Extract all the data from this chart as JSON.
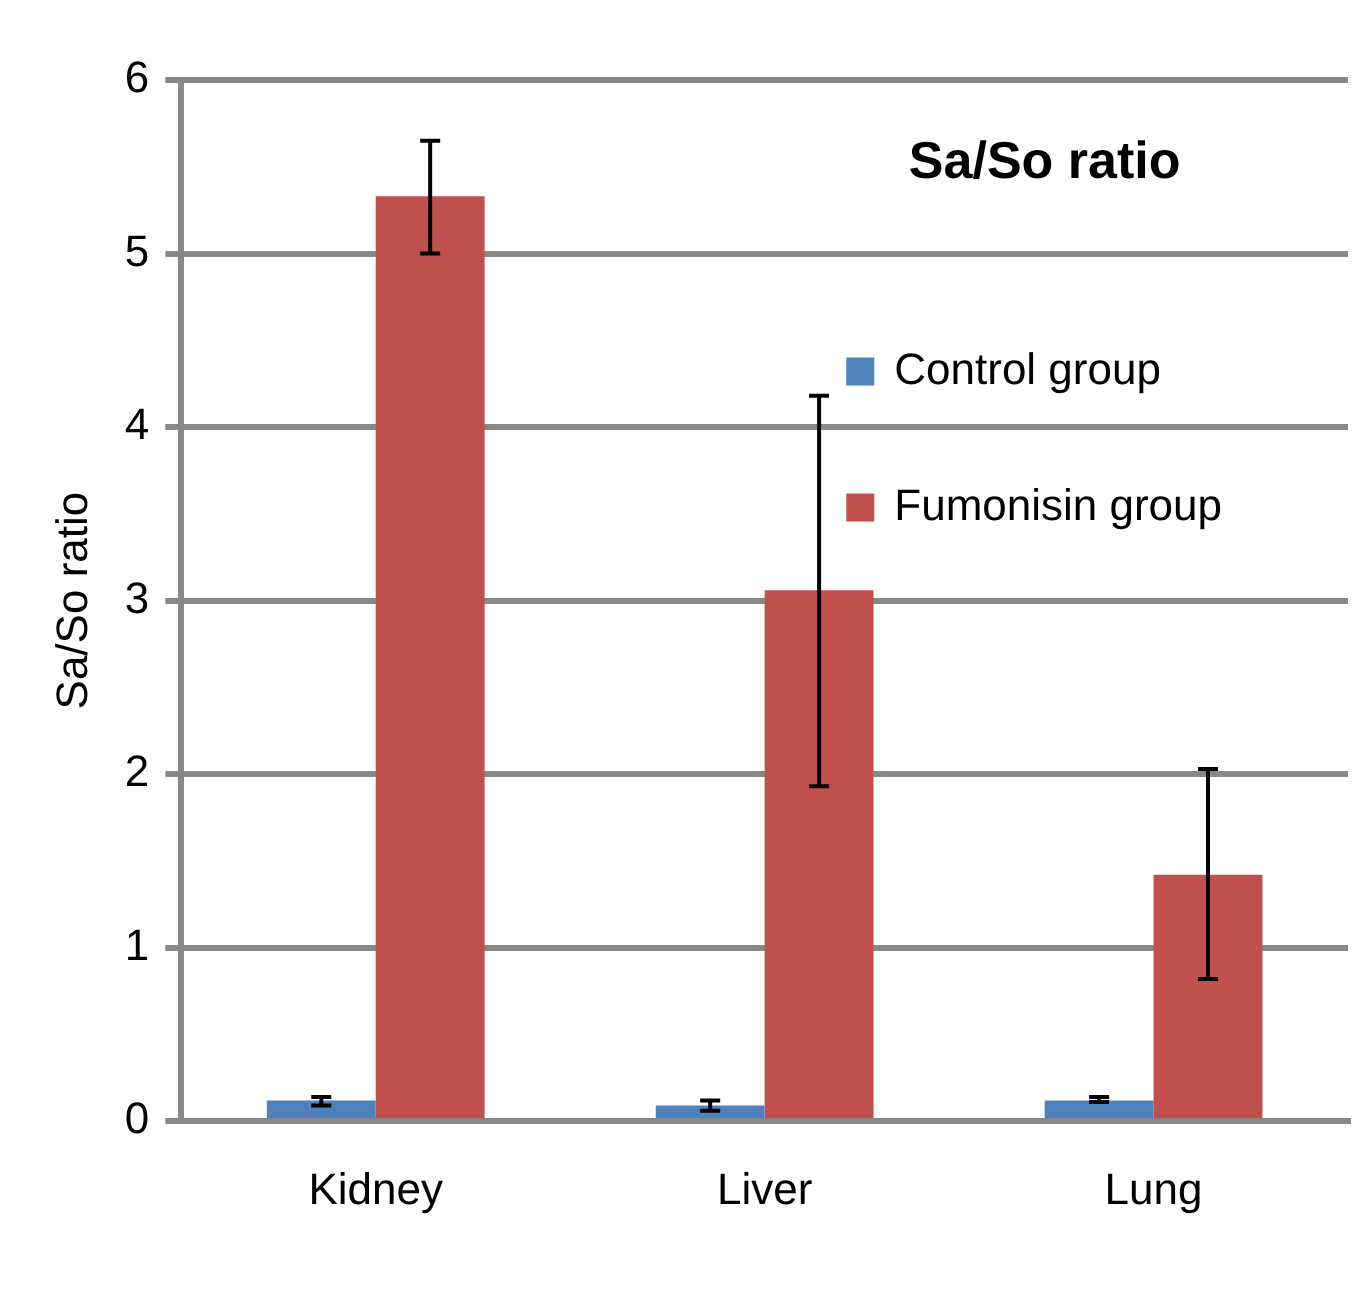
{
  "chart_data": {
    "type": "bar",
    "title": "Sa/So ratio",
    "ylabel": "Sa/So ratio",
    "categories": [
      "Kidney",
      "Liver",
      "Lung"
    ],
    "series": [
      {
        "name": "Control group",
        "color": "#4f81bd",
        "values": [
          0.12,
          0.09,
          0.12
        ],
        "errors": [
          [
            0.09,
            0.14
          ],
          [
            0.06,
            0.12
          ],
          [
            0.11,
            0.14
          ]
        ]
      },
      {
        "name": "Fumonisin group",
        "color": "#c0504d",
        "values": [
          5.33,
          3.06,
          1.42
        ],
        "errors": [
          [
            5.0,
            5.65
          ],
          [
            1.93,
            4.18
          ],
          [
            0.82,
            2.03
          ]
        ]
      }
    ],
    "ylim": [
      0,
      6
    ],
    "yticks": [
      0,
      1,
      2,
      3,
      4,
      5,
      6
    ],
    "grid": "y",
    "legend": "right"
  }
}
